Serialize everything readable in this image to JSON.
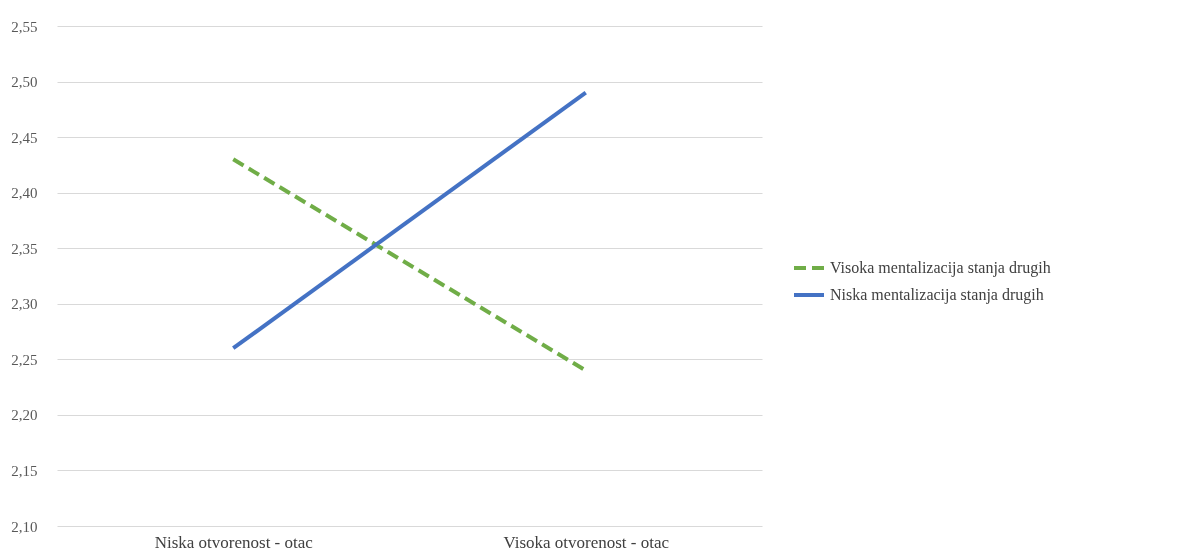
{
  "chart_data": {
    "type": "line",
    "categories": [
      "Niska otvorenost - otac",
      "Visoka otvorenost - otac"
    ],
    "series": [
      {
        "name": "Visoka mentalizacija stanja drugih",
        "color": "#70ad47",
        "line_style": "dashed",
        "values": [
          2.43,
          2.24
        ]
      },
      {
        "name": "Niska mentalizacija stanja drugih",
        "color": "#4472c4",
        "line_style": "solid",
        "values": [
          2.26,
          2.49
        ]
      }
    ],
    "ylim": [
      2.1,
      2.55
    ],
    "yticks": [
      {
        "value": 2.1,
        "label": "2,10"
      },
      {
        "value": 2.15,
        "label": "2,15"
      },
      {
        "value": 2.2,
        "label": "2,20"
      },
      {
        "value": 2.25,
        "label": "2,25"
      },
      {
        "value": 2.3,
        "label": "2,30"
      },
      {
        "value": 2.35,
        "label": "2,35"
      },
      {
        "value": 2.4,
        "label": "2,40"
      },
      {
        "value": 2.45,
        "label": "2,45"
      },
      {
        "value": 2.5,
        "label": "2,50"
      },
      {
        "value": 2.55,
        "label": "2,55"
      }
    ],
    "grid": "y",
    "legend": "right",
    "marker": "none"
  }
}
